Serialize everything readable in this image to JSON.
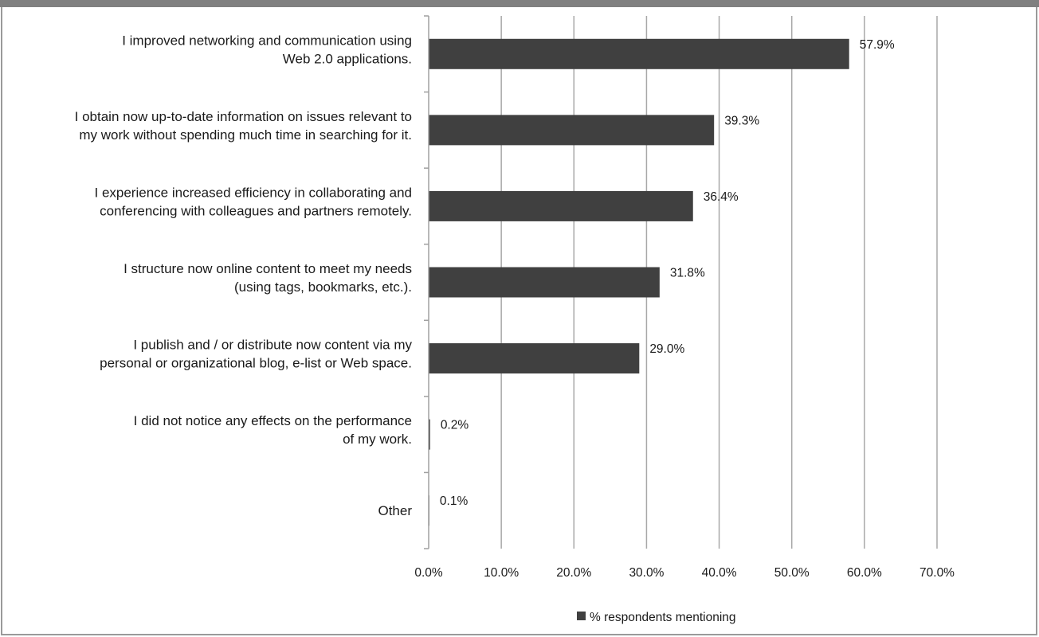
{
  "chart_data": {
    "type": "bar",
    "orientation": "horizontal",
    "categories": [
      [
        "I improved networking and communication using",
        "Web 2.0 applications."
      ],
      [
        "I obtain now up-to-date information on issues relevant to",
        "my work without spending much time in searching for it."
      ],
      [
        "I experience increased efficiency in collaborating and",
        "conferencing with colleagues and partners remotely."
      ],
      [
        "I structure now online content to meet my needs",
        "(using tags, bookmarks, etc.)."
      ],
      [
        "I publish and / or distribute now content via my",
        "personal or organizational blog, e-list or Web space."
      ],
      [
        "I did not notice any effects on the performance",
        "of my work."
      ],
      [
        "Other"
      ]
    ],
    "values": [
      57.9,
      39.3,
      36.4,
      31.8,
      29.0,
      0.2,
      0.1
    ],
    "data_labels": [
      "57.9%",
      "39.3%",
      "36.4%",
      "31.8%",
      "29.0%",
      "0.2%",
      "0.1%"
    ],
    "xlim": [
      0,
      70
    ],
    "x_ticks": [
      "0.0%",
      "10.0%",
      "20.0%",
      "30.0%",
      "40.0%",
      "50.0%",
      "60.0%",
      "70.0%"
    ],
    "grid": "vertical",
    "legend": {
      "position": "bottom",
      "label": "% respondents mentioning"
    },
    "colors": {
      "bar": "#404040",
      "grid": "#a8a8a8",
      "axis": "#a0a0a0",
      "text": "#1a1a1a"
    }
  }
}
